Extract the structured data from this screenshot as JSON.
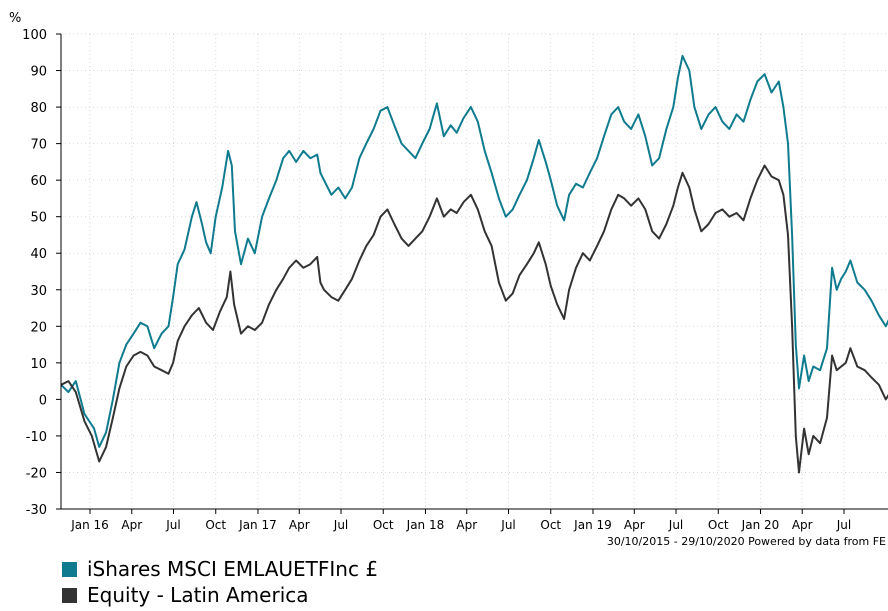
{
  "chart_data": {
    "type": "line",
    "y_unit_label": "%",
    "ylim": [
      -30,
      100
    ],
    "y_ticks": [
      100,
      90,
      80,
      70,
      60,
      50,
      40,
      30,
      20,
      10,
      0,
      -10,
      -20,
      -30
    ],
    "x_range": [
      "2015-10-30",
      "2020-10-29"
    ],
    "x_ticks": [
      {
        "label": "Jan 16",
        "date": "2016-01-01"
      },
      {
        "label": "Apr",
        "date": "2016-04-01"
      },
      {
        "label": "Jul",
        "date": "2016-07-01"
      },
      {
        "label": "Oct",
        "date": "2016-10-01"
      },
      {
        "label": "Jan 17",
        "date": "2017-01-01"
      },
      {
        "label": "Apr",
        "date": "2017-04-01"
      },
      {
        "label": "Jul",
        "date": "2017-07-01"
      },
      {
        "label": "Oct",
        "date": "2017-10-01"
      },
      {
        "label": "Jan 18",
        "date": "2018-01-01"
      },
      {
        "label": "Apr",
        "date": "2018-04-01"
      },
      {
        "label": "Jul",
        "date": "2018-07-01"
      },
      {
        "label": "Oct",
        "date": "2018-10-01"
      },
      {
        "label": "Jan 19",
        "date": "2019-01-01"
      },
      {
        "label": "Apr",
        "date": "2019-04-01"
      },
      {
        "label": "Jul",
        "date": "2019-07-01"
      },
      {
        "label": "Oct",
        "date": "2019-10-01"
      },
      {
        "label": "Jan 20",
        "date": "2020-01-01"
      },
      {
        "label": "Apr",
        "date": "2020-04-01"
      },
      {
        "label": "Jul",
        "date": "2020-07-01"
      }
    ],
    "grid": true,
    "legend_position": "bottom-left",
    "footer": "30/10/2015 - 29/10/2020 Powered by data from FE",
    "series": [
      {
        "name": "iShares MSCI EMLAUETFInc £",
        "color": "#0f7b8e",
        "points": [
          [
            "2015-10-30",
            4
          ],
          [
            "2015-11-15",
            2
          ],
          [
            "2015-12-01",
            5
          ],
          [
            "2015-12-20",
            -4
          ],
          [
            "2016-01-10",
            -8
          ],
          [
            "2016-01-21",
            -13
          ],
          [
            "2016-02-05",
            -9
          ],
          [
            "2016-02-20",
            0
          ],
          [
            "2016-03-05",
            10
          ],
          [
            "2016-03-20",
            15
          ],
          [
            "2016-04-05",
            18
          ],
          [
            "2016-04-20",
            21
          ],
          [
            "2016-05-05",
            20
          ],
          [
            "2016-05-20",
            14
          ],
          [
            "2016-06-05",
            18
          ],
          [
            "2016-06-20",
            20
          ],
          [
            "2016-06-30",
            28
          ],
          [
            "2016-07-10",
            37
          ],
          [
            "2016-07-25",
            41
          ],
          [
            "2016-08-10",
            50
          ],
          [
            "2016-08-20",
            54
          ],
          [
            "2016-09-01",
            48
          ],
          [
            "2016-09-10",
            43
          ],
          [
            "2016-09-20",
            40
          ],
          [
            "2016-10-01",
            50
          ],
          [
            "2016-10-15",
            58
          ],
          [
            "2016-10-28",
            68
          ],
          [
            "2016-11-05",
            64
          ],
          [
            "2016-11-12",
            46
          ],
          [
            "2016-11-25",
            37
          ],
          [
            "2016-12-10",
            44
          ],
          [
            "2016-12-25",
            40
          ],
          [
            "2017-01-10",
            50
          ],
          [
            "2017-01-25",
            55
          ],
          [
            "2017-02-10",
            60
          ],
          [
            "2017-02-25",
            66
          ],
          [
            "2017-03-10",
            68
          ],
          [
            "2017-03-25",
            65
          ],
          [
            "2017-04-10",
            68
          ],
          [
            "2017-04-25",
            66
          ],
          [
            "2017-05-10",
            67
          ],
          [
            "2017-05-17",
            62
          ],
          [
            "2017-05-25",
            60
          ],
          [
            "2017-06-10",
            56
          ],
          [
            "2017-06-25",
            58
          ],
          [
            "2017-07-10",
            55
          ],
          [
            "2017-07-25",
            58
          ],
          [
            "2017-08-10",
            66
          ],
          [
            "2017-08-25",
            70
          ],
          [
            "2017-09-10",
            74
          ],
          [
            "2017-09-25",
            79
          ],
          [
            "2017-10-10",
            80
          ],
          [
            "2017-10-25",
            75
          ],
          [
            "2017-11-10",
            70
          ],
          [
            "2017-11-25",
            68
          ],
          [
            "2017-12-10",
            66
          ],
          [
            "2017-12-25",
            70
          ],
          [
            "2018-01-10",
            74
          ],
          [
            "2018-01-26",
            81
          ],
          [
            "2018-02-10",
            72
          ],
          [
            "2018-02-25",
            75
          ],
          [
            "2018-03-10",
            73
          ],
          [
            "2018-03-25",
            77
          ],
          [
            "2018-04-10",
            80
          ],
          [
            "2018-04-25",
            76
          ],
          [
            "2018-05-10",
            68
          ],
          [
            "2018-05-25",
            62
          ],
          [
            "2018-06-10",
            55
          ],
          [
            "2018-06-25",
            50
          ],
          [
            "2018-07-10",
            52
          ],
          [
            "2018-07-25",
            56
          ],
          [
            "2018-08-10",
            60
          ],
          [
            "2018-08-25",
            66
          ],
          [
            "2018-09-05",
            71
          ],
          [
            "2018-09-20",
            65
          ],
          [
            "2018-10-01",
            60
          ],
          [
            "2018-10-15",
            53
          ],
          [
            "2018-10-30",
            49
          ],
          [
            "2018-11-10",
            56
          ],
          [
            "2018-11-25",
            59
          ],
          [
            "2018-12-10",
            58
          ],
          [
            "2018-12-25",
            62
          ],
          [
            "2019-01-10",
            66
          ],
          [
            "2019-01-25",
            72
          ],
          [
            "2019-02-10",
            78
          ],
          [
            "2019-02-25",
            80
          ],
          [
            "2019-03-10",
            76
          ],
          [
            "2019-03-25",
            74
          ],
          [
            "2019-04-10",
            78
          ],
          [
            "2019-04-25",
            72
          ],
          [
            "2019-05-10",
            64
          ],
          [
            "2019-05-25",
            66
          ],
          [
            "2019-06-10",
            74
          ],
          [
            "2019-06-25",
            80
          ],
          [
            "2019-07-05",
            88
          ],
          [
            "2019-07-15",
            94
          ],
          [
            "2019-07-30",
            90
          ],
          [
            "2019-08-10",
            80
          ],
          [
            "2019-08-25",
            74
          ],
          [
            "2019-09-10",
            78
          ],
          [
            "2019-09-25",
            80
          ],
          [
            "2019-10-10",
            76
          ],
          [
            "2019-10-25",
            74
          ],
          [
            "2019-11-10",
            78
          ],
          [
            "2019-11-25",
            76
          ],
          [
            "2019-12-10",
            82
          ],
          [
            "2019-12-25",
            87
          ],
          [
            "2020-01-10",
            89
          ],
          [
            "2020-01-25",
            84
          ],
          [
            "2020-02-10",
            87
          ],
          [
            "2020-02-20",
            80
          ],
          [
            "2020-03-01",
            70
          ],
          [
            "2020-03-10",
            45
          ],
          [
            "2020-03-18",
            15
          ],
          [
            "2020-03-25",
            3
          ],
          [
            "2020-04-05",
            12
          ],
          [
            "2020-04-15",
            5
          ],
          [
            "2020-04-25",
            9
          ],
          [
            "2020-05-10",
            8
          ],
          [
            "2020-05-25",
            14
          ],
          [
            "2020-06-05",
            36
          ],
          [
            "2020-06-15",
            30
          ],
          [
            "2020-06-25",
            33
          ],
          [
            "2020-07-05",
            35
          ],
          [
            "2020-07-15",
            38
          ],
          [
            "2020-07-30",
            32
          ],
          [
            "2020-08-15",
            30
          ],
          [
            "2020-08-30",
            27
          ],
          [
            "2020-09-15",
            23
          ],
          [
            "2020-09-30",
            20
          ],
          [
            "2020-10-15",
            24
          ],
          [
            "2020-10-29",
            25
          ]
        ]
      },
      {
        "name": "Equity - Latin America",
        "color": "#333333",
        "points": [
          [
            "2015-10-30",
            4
          ],
          [
            "2015-11-15",
            5
          ],
          [
            "2015-12-01",
            2
          ],
          [
            "2015-12-20",
            -6
          ],
          [
            "2016-01-05",
            -10
          ],
          [
            "2016-01-21",
            -17
          ],
          [
            "2016-02-05",
            -13
          ],
          [
            "2016-02-20",
            -5
          ],
          [
            "2016-03-05",
            3
          ],
          [
            "2016-03-20",
            9
          ],
          [
            "2016-04-05",
            12
          ],
          [
            "2016-04-20",
            13
          ],
          [
            "2016-05-05",
            12
          ],
          [
            "2016-05-20",
            9
          ],
          [
            "2016-06-05",
            8
          ],
          [
            "2016-06-20",
            7
          ],
          [
            "2016-06-30",
            10
          ],
          [
            "2016-07-10",
            16
          ],
          [
            "2016-07-25",
            20
          ],
          [
            "2016-08-10",
            23
          ],
          [
            "2016-08-25",
            25
          ],
          [
            "2016-09-10",
            21
          ],
          [
            "2016-09-25",
            19
          ],
          [
            "2016-10-10",
            24
          ],
          [
            "2016-10-25",
            28
          ],
          [
            "2016-11-02",
            35
          ],
          [
            "2016-11-10",
            26
          ],
          [
            "2016-11-25",
            18
          ],
          [
            "2016-12-10",
            20
          ],
          [
            "2016-12-25",
            19
          ],
          [
            "2017-01-10",
            21
          ],
          [
            "2017-01-25",
            26
          ],
          [
            "2017-02-10",
            30
          ],
          [
            "2017-02-25",
            33
          ],
          [
            "2017-03-10",
            36
          ],
          [
            "2017-03-25",
            38
          ],
          [
            "2017-04-10",
            36
          ],
          [
            "2017-04-25",
            37
          ],
          [
            "2017-05-10",
            39
          ],
          [
            "2017-05-17",
            32
          ],
          [
            "2017-05-25",
            30
          ],
          [
            "2017-06-10",
            28
          ],
          [
            "2017-06-25",
            27
          ],
          [
            "2017-07-10",
            30
          ],
          [
            "2017-07-25",
            33
          ],
          [
            "2017-08-10",
            38
          ],
          [
            "2017-08-25",
            42
          ],
          [
            "2017-09-10",
            45
          ],
          [
            "2017-09-25",
            50
          ],
          [
            "2017-10-10",
            52
          ],
          [
            "2017-10-25",
            48
          ],
          [
            "2017-11-10",
            44
          ],
          [
            "2017-11-25",
            42
          ],
          [
            "2017-12-10",
            44
          ],
          [
            "2017-12-25",
            46
          ],
          [
            "2018-01-10",
            50
          ],
          [
            "2018-01-26",
            55
          ],
          [
            "2018-02-10",
            50
          ],
          [
            "2018-02-25",
            52
          ],
          [
            "2018-03-10",
            51
          ],
          [
            "2018-03-25",
            54
          ],
          [
            "2018-04-10",
            56
          ],
          [
            "2018-04-25",
            52
          ],
          [
            "2018-05-10",
            46
          ],
          [
            "2018-05-25",
            42
          ],
          [
            "2018-06-10",
            32
          ],
          [
            "2018-06-25",
            27
          ],
          [
            "2018-07-10",
            29
          ],
          [
            "2018-07-25",
            34
          ],
          [
            "2018-08-10",
            37
          ],
          [
            "2018-08-25",
            40
          ],
          [
            "2018-09-05",
            43
          ],
          [
            "2018-09-20",
            37
          ],
          [
            "2018-10-01",
            31
          ],
          [
            "2018-10-15",
            26
          ],
          [
            "2018-10-30",
            22
          ],
          [
            "2018-11-10",
            30
          ],
          [
            "2018-11-25",
            36
          ],
          [
            "2018-12-10",
            40
          ],
          [
            "2018-12-25",
            38
          ],
          [
            "2019-01-10",
            42
          ],
          [
            "2019-01-25",
            46
          ],
          [
            "2019-02-10",
            52
          ],
          [
            "2019-02-25",
            56
          ],
          [
            "2019-03-10",
            55
          ],
          [
            "2019-03-25",
            53
          ],
          [
            "2019-04-10",
            55
          ],
          [
            "2019-04-25",
            52
          ],
          [
            "2019-05-10",
            46
          ],
          [
            "2019-05-25",
            44
          ],
          [
            "2019-06-10",
            48
          ],
          [
            "2019-06-25",
            53
          ],
          [
            "2019-07-05",
            58
          ],
          [
            "2019-07-15",
            62
          ],
          [
            "2019-07-30",
            58
          ],
          [
            "2019-08-10",
            52
          ],
          [
            "2019-08-25",
            46
          ],
          [
            "2019-09-10",
            48
          ],
          [
            "2019-09-25",
            51
          ],
          [
            "2019-10-10",
            52
          ],
          [
            "2019-10-25",
            50
          ],
          [
            "2019-11-10",
            51
          ],
          [
            "2019-11-25",
            49
          ],
          [
            "2019-12-10",
            55
          ],
          [
            "2019-12-25",
            60
          ],
          [
            "2020-01-10",
            64
          ],
          [
            "2020-01-25",
            61
          ],
          [
            "2020-02-10",
            60
          ],
          [
            "2020-02-20",
            56
          ],
          [
            "2020-03-01",
            45
          ],
          [
            "2020-03-10",
            20
          ],
          [
            "2020-03-18",
            -10
          ],
          [
            "2020-03-25",
            -20
          ],
          [
            "2020-04-05",
            -8
          ],
          [
            "2020-04-15",
            -15
          ],
          [
            "2020-04-25",
            -10
          ],
          [
            "2020-05-10",
            -12
          ],
          [
            "2020-05-25",
            -5
          ],
          [
            "2020-06-05",
            12
          ],
          [
            "2020-06-15",
            8
          ],
          [
            "2020-06-25",
            9
          ],
          [
            "2020-07-05",
            10
          ],
          [
            "2020-07-15",
            14
          ],
          [
            "2020-07-30",
            9
          ],
          [
            "2020-08-15",
            8
          ],
          [
            "2020-08-30",
            6
          ],
          [
            "2020-09-15",
            4
          ],
          [
            "2020-09-30",
            0
          ],
          [
            "2020-10-15",
            3
          ],
          [
            "2020-10-29",
            4
          ]
        ]
      }
    ]
  }
}
